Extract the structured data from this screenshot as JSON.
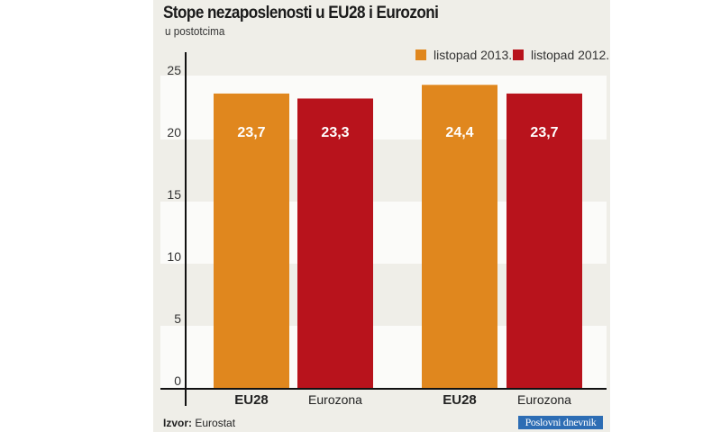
{
  "chart_data": {
    "type": "bar",
    "title": "Stope nezaposlenosti u EU28 i Eurozoni",
    "subtitle": "u postotcima",
    "categories": [
      "EU28",
      "Eurozona",
      "EU28",
      "Eurozona"
    ],
    "category_bold": [
      true,
      false,
      true,
      false
    ],
    "values": [
      23.7,
      23.3,
      24.4,
      23.7
    ],
    "data_labels": [
      "23,7",
      "23,3",
      "24,4",
      "23,7"
    ],
    "bar_series": [
      "listopad 2013.",
      "listopad 2012.",
      "listopad 2013.",
      "listopad 2012."
    ],
    "legend": [
      {
        "name": "listopad 2013.",
        "color": "#e0871e"
      },
      {
        "name": "listopad 2012.",
        "color": "#b8131c"
      }
    ],
    "legend_position": "top-right",
    "ylim": [
      0,
      25
    ],
    "yticks": [
      "0",
      "5",
      "10",
      "15",
      "20",
      "25"
    ],
    "grid": "alternating bands",
    "xlabel": "",
    "ylabel": ""
  },
  "footer": {
    "source_label": "Izvor:",
    "source": "Eurostat"
  },
  "logo": "Poslovni dnevnik"
}
